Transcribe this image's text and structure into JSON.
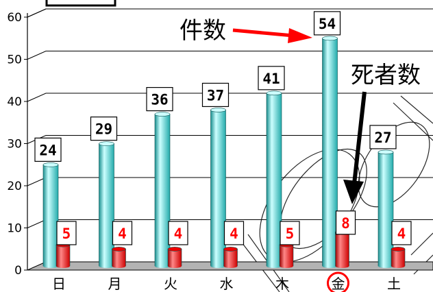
{
  "chart_data": {
    "type": "bar",
    "title": "",
    "xlabel": "",
    "ylabel": "",
    "ylim": [
      0,
      60
    ],
    "yticks": [
      0,
      10,
      20,
      30,
      40,
      50,
      60
    ],
    "grid": true,
    "categories": [
      "日",
      "月",
      "火",
      "水",
      "木",
      "金",
      "土"
    ],
    "highlight_category": "金",
    "series": [
      {
        "name": "件数",
        "values": [
          24,
          29,
          36,
          37,
          41,
          54,
          27
        ]
      },
      {
        "name": "死者数",
        "values": [
          5,
          4,
          4,
          4,
          5,
          8,
          4
        ]
      }
    ],
    "annotations": [
      {
        "text": "件数",
        "target_series": "件数",
        "target_category": "金"
      },
      {
        "text": "死者数",
        "target_series": "死者数",
        "target_category": "金"
      }
    ]
  },
  "colors": {
    "cases_bar": "#33cccc",
    "cases_bar_light": "#ccffff",
    "cases_bar_dark": "#1a8f8f",
    "deaths_bar": "#ee0000",
    "deaths_bar_light": "#ff8888",
    "deaths_bar_dark": "#990000",
    "floor": "#b3b3b3",
    "highlight_circle": "#ff0000",
    "arrow_red": "#ff0000",
    "arrow_black": "#000000"
  }
}
